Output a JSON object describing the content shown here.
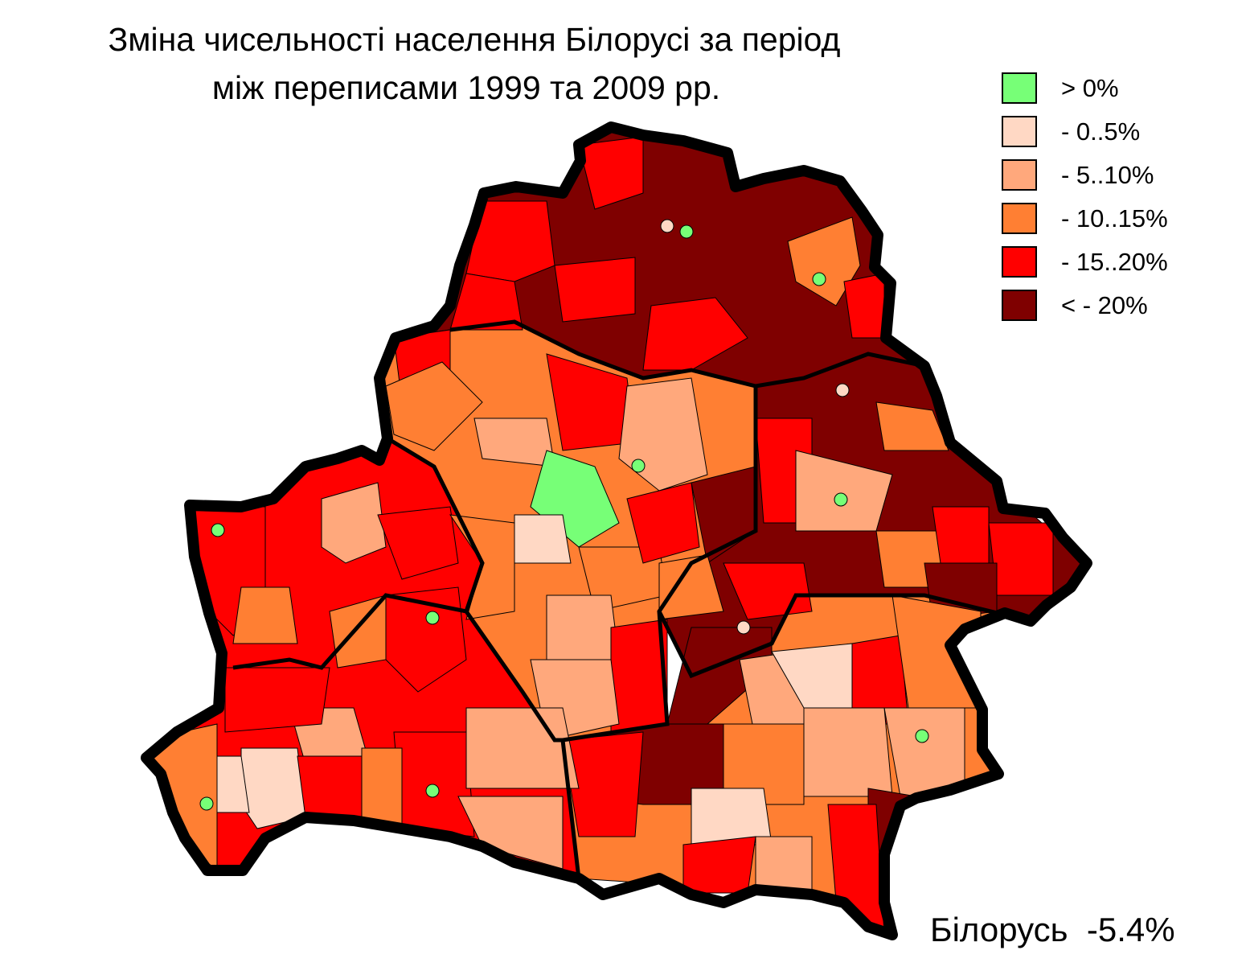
{
  "title": {
    "line1": "Зміна чисельності населення Білорусі за період",
    "line2": "між переписами 1999 та 2009 рр."
  },
  "legend": [
    {
      "label": "> 0%",
      "color": "#77ff77"
    },
    {
      "label": "- 0..5%",
      "color": "#ffd8c4"
    },
    {
      "label": "- 5..10%",
      "color": "#ffa87c"
    },
    {
      "label": "- 10..15%",
      "color": "#ff7f33"
    },
    {
      "label": "- 15..20%",
      "color": "#ff0000"
    },
    {
      "label": "< - 20%",
      "color": "#7f0000"
    }
  ],
  "total": {
    "label": "Білорусь",
    "value": "-5.4%"
  }
}
